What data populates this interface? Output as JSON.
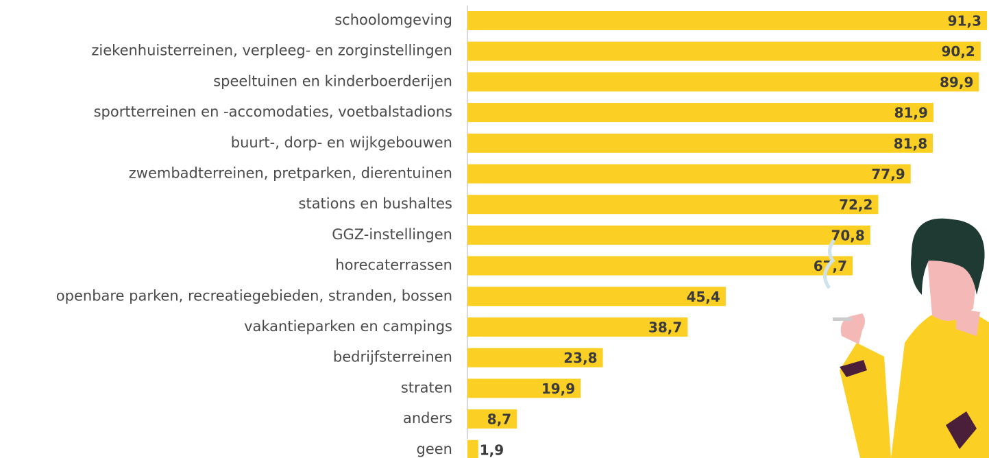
{
  "chart_data": {
    "type": "bar",
    "orientation": "horizontal",
    "categories": [
      "schoolomgeving",
      "ziekenhuisterreinen, verpleeg- en zorginstellingen",
      "speeltuinen en kinderboerderijen",
      "sportterreinen en -accomodaties, voetbalstadions",
      "buurt-, dorp- en wijkgebouwen",
      "zwembadterreinen, pretparken, dierentuinen",
      "stations en bushaltes",
      "GGZ-instellingen",
      "horecaterrassen",
      "openbare parken, recreatiegebieden, stranden, bossen",
      "vakantieparken en campings",
      "bedrijfsterreinen",
      "straten",
      "anders",
      "geen"
    ],
    "values": [
      91.3,
      90.2,
      89.9,
      81.9,
      81.8,
      77.9,
      72.2,
      70.8,
      67.7,
      45.4,
      38.7,
      23.8,
      19.9,
      8.7,
      1.9
    ],
    "value_labels": [
      "91,3",
      "90,2",
      "89,9",
      "81,9",
      "81,8",
      "77,9",
      "72,2",
      "70,8",
      "67,7",
      "45,4",
      "38,7",
      "23,8",
      "19,9",
      "8,7",
      "1,9"
    ],
    "color": "#fccf24"
  }
}
